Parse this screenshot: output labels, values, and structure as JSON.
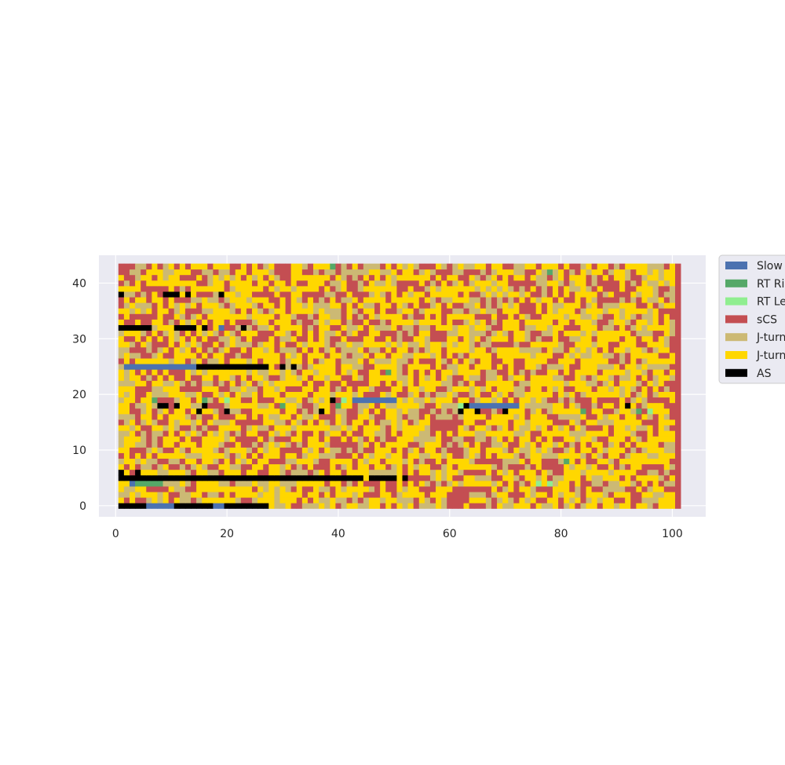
{
  "chart_data": {
    "type": "heatmap",
    "title": "",
    "xlabel": "",
    "ylabel": "",
    "xlim": [
      -3,
      106
    ],
    "ylim": [
      -2,
      45
    ],
    "x_range": [
      1,
      101
    ],
    "y_range": [
      0,
      43
    ],
    "grid": true,
    "legend_placement": "outside-right-top",
    "xticks": [
      "0",
      "20",
      "40",
      "60",
      "80",
      "100"
    ],
    "yticks": [
      "0",
      "10",
      "20",
      "30",
      "40"
    ],
    "legend": [
      "Slow",
      "RT Ri",
      "RT Le",
      "sCS",
      "J-turn",
      "J-turn",
      "AS"
    ],
    "categories": [
      "Slow",
      "RT Ri",
      "RT Le",
      "sCS",
      "J-turn",
      "J-turn",
      "AS"
    ],
    "colors": [
      "#4c72b0",
      "#55a868",
      "#90ee90",
      "#c44e52",
      "#ccb974",
      "#ffd700",
      "#000000"
    ],
    "background": "#eaeaf2",
    "base_pattern": "mixed cells of sCS, J-turn (tan) and J-turn (gold); last column x=101 is sCS",
    "segments": [
      {
        "row": 0,
        "x0": 1,
        "x1": 27,
        "cat": 6,
        "note": "AS/Slow mix"
      },
      {
        "row": 0,
        "x0": 6,
        "x1": 10,
        "cat": 0
      },
      {
        "row": 0,
        "x0": 18,
        "x1": 20,
        "cat": 0
      },
      {
        "row": 5,
        "x0": 9,
        "x1": 44,
        "cat": 6
      },
      {
        "row": 5,
        "x0": 46,
        "x1": 50,
        "cat": 6
      },
      {
        "row": 5,
        "x0": 1,
        "x1": 8,
        "cat": 6
      },
      {
        "row": 4,
        "x0": 4,
        "x1": 8,
        "cat": 1
      },
      {
        "row": 25,
        "x0": 15,
        "x1": 27,
        "cat": 6
      },
      {
        "row": 25,
        "x0": 2,
        "x1": 14,
        "cat": 0
      },
      {
        "row": 32,
        "x0": 1,
        "x1": 6,
        "cat": 6
      },
      {
        "row": 32,
        "x0": 11,
        "x1": 14,
        "cat": 6
      },
      {
        "row": 38,
        "x0": 9,
        "x1": 11,
        "cat": 6
      },
      {
        "row": 19,
        "x0": 43,
        "x1": 50,
        "cat": 0
      },
      {
        "row": 18,
        "x0": 64,
        "x1": 72,
        "cat": 0
      },
      {
        "row": 18,
        "x0": 8,
        "x1": 9,
        "cat": 6
      }
    ]
  }
}
